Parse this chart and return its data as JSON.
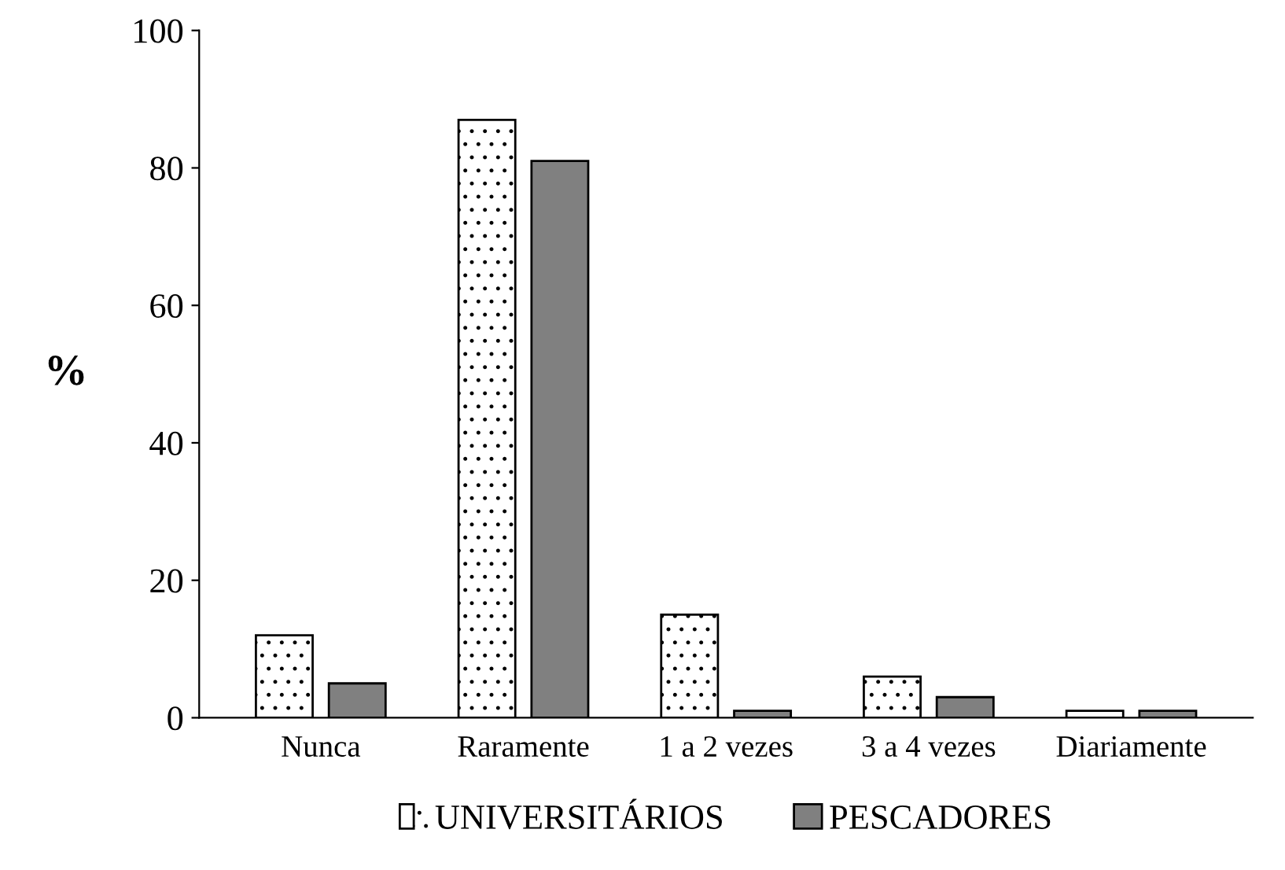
{
  "chart_data": {
    "type": "bar",
    "ylabel": "%",
    "categories": [
      "Nunca",
      "Raramente",
      "1 a 2 vezes",
      "3 a 4 vezes",
      "Diariamente"
    ],
    "series": [
      {
        "name": "UNIVERSITÁRIOS",
        "color": "#ffffff",
        "values": [
          12,
          87,
          15,
          6,
          1
        ]
      },
      {
        "name": "PESCADORES",
        "color": "#808080",
        "values": [
          5,
          81,
          1,
          3,
          1
        ]
      }
    ],
    "ylim": [
      0,
      100
    ],
    "yticks": [
      0,
      20,
      40,
      60,
      80,
      100
    ],
    "grid": false,
    "legend": "bottom"
  }
}
